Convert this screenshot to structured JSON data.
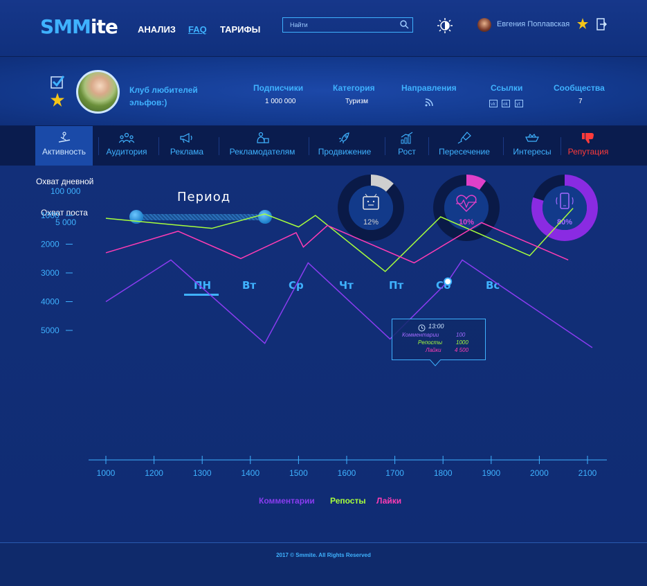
{
  "header": {
    "logo_left": "SMM",
    "logo_right": "ite",
    "nav": [
      "АНАЛИЗ",
      "FAQ",
      "ТАРИФЫ"
    ],
    "search_placeholder": "Найти",
    "user_name": "Евгения Поплавская"
  },
  "profile": {
    "club_name": "Клуб любителей эльфов:)",
    "stats": [
      {
        "label": "Подписчики",
        "value": "1 000 000"
      },
      {
        "label": "Категория",
        "value": "Туризм"
      },
      {
        "label": "Направления",
        "value": ""
      },
      {
        "label": "Ссылки",
        "value": ""
      },
      {
        "label": "Сообщества",
        "value": "7"
      }
    ],
    "links": [
      "vk",
      "ok",
      "yt"
    ]
  },
  "tabs": [
    {
      "label": "Активность",
      "icon": "snowboard-icon"
    },
    {
      "label": "Аудитория",
      "icon": "people-icon"
    },
    {
      "label": "Реклама",
      "icon": "megaphone-icon"
    },
    {
      "label": "Рекламодателям",
      "icon": "advertiser-icon"
    },
    {
      "label": "Продвижение",
      "icon": "rocket-icon"
    },
    {
      "label": "Рост",
      "icon": "growth-chart-icon"
    },
    {
      "label": "Пересечение",
      "icon": "kite-icon"
    },
    {
      "label": "Интересы",
      "icon": "boat-icon"
    },
    {
      "label": "Репутация",
      "icon": "thumbs-down-icon"
    }
  ],
  "reach": {
    "daily_label": "Охват дневной",
    "daily_value": "100 000",
    "post_label": "Охват поста",
    "post_value": "5 000"
  },
  "period_title": "Период",
  "donuts": [
    {
      "value": "12%",
      "fraction": 0.12,
      "color": "#cfcfcf",
      "icon": "tv-icon"
    },
    {
      "value": "10%",
      "fraction": 0.1,
      "color": "#e040c8",
      "icon": "heart-pulse-icon"
    },
    {
      "value": "80%",
      "fraction": 0.8,
      "color": "#8a2be2",
      "icon": "phone-icon"
    }
  ],
  "days": [
    "ПН",
    "Вт",
    "Ср",
    "Чт",
    "Пт",
    "Сб",
    "Вс"
  ],
  "tooltip": {
    "time": "13:00",
    "rows": [
      {
        "label": "Комментарии",
        "value": "100"
      },
      {
        "label": "Репосты",
        "value": "1000"
      },
      {
        "label": "Лайки",
        "value": "4 500"
      }
    ]
  },
  "chart_data": {
    "type": "line",
    "x_ticks": [
      1000,
      1200,
      1300,
      1400,
      1500,
      1600,
      1700,
      1800,
      1900,
      2000,
      2100
    ],
    "y_ticks": [
      1000,
      2000,
      3000,
      4000,
      5000
    ],
    "ylim": [
      500,
      5500
    ],
    "series": [
      {
        "name": "Комментарии",
        "color": "#8a3cf0",
        "points": [
          [
            0,
            4000
          ],
          [
            1.35,
            2550
          ],
          [
            3.3,
            5450
          ],
          [
            4.2,
            2650
          ],
          [
            5.9,
            5300
          ],
          [
            7.1,
            3300
          ],
          [
            7.4,
            2550
          ],
          [
            10.1,
            5600
          ]
        ]
      },
      {
        "name": "Репосты",
        "color": "#a8ff3c",
        "points": [
          [
            0,
            1100
          ],
          [
            2.2,
            1450
          ],
          [
            3.3,
            950
          ],
          [
            4.0,
            1400
          ],
          [
            4.35,
            1000
          ],
          [
            5.8,
            2950
          ],
          [
            6.95,
            1050
          ],
          [
            8.8,
            2400
          ],
          [
            9.7,
            750
          ]
        ]
      },
      {
        "name": "Лайки",
        "color": "#ff3cb4",
        "points": [
          [
            0,
            2300
          ],
          [
            1.5,
            1550
          ],
          [
            2.8,
            2500
          ],
          [
            3.95,
            1600
          ],
          [
            4.1,
            2100
          ],
          [
            4.6,
            1350
          ],
          [
            6.4,
            2650
          ],
          [
            7.8,
            1250
          ],
          [
            9.6,
            2550
          ]
        ]
      }
    ]
  },
  "legend": [
    "Комментарии",
    "Репосты",
    "Лайки"
  ],
  "footer": "2017 © Smmite. All Rights Reserved"
}
